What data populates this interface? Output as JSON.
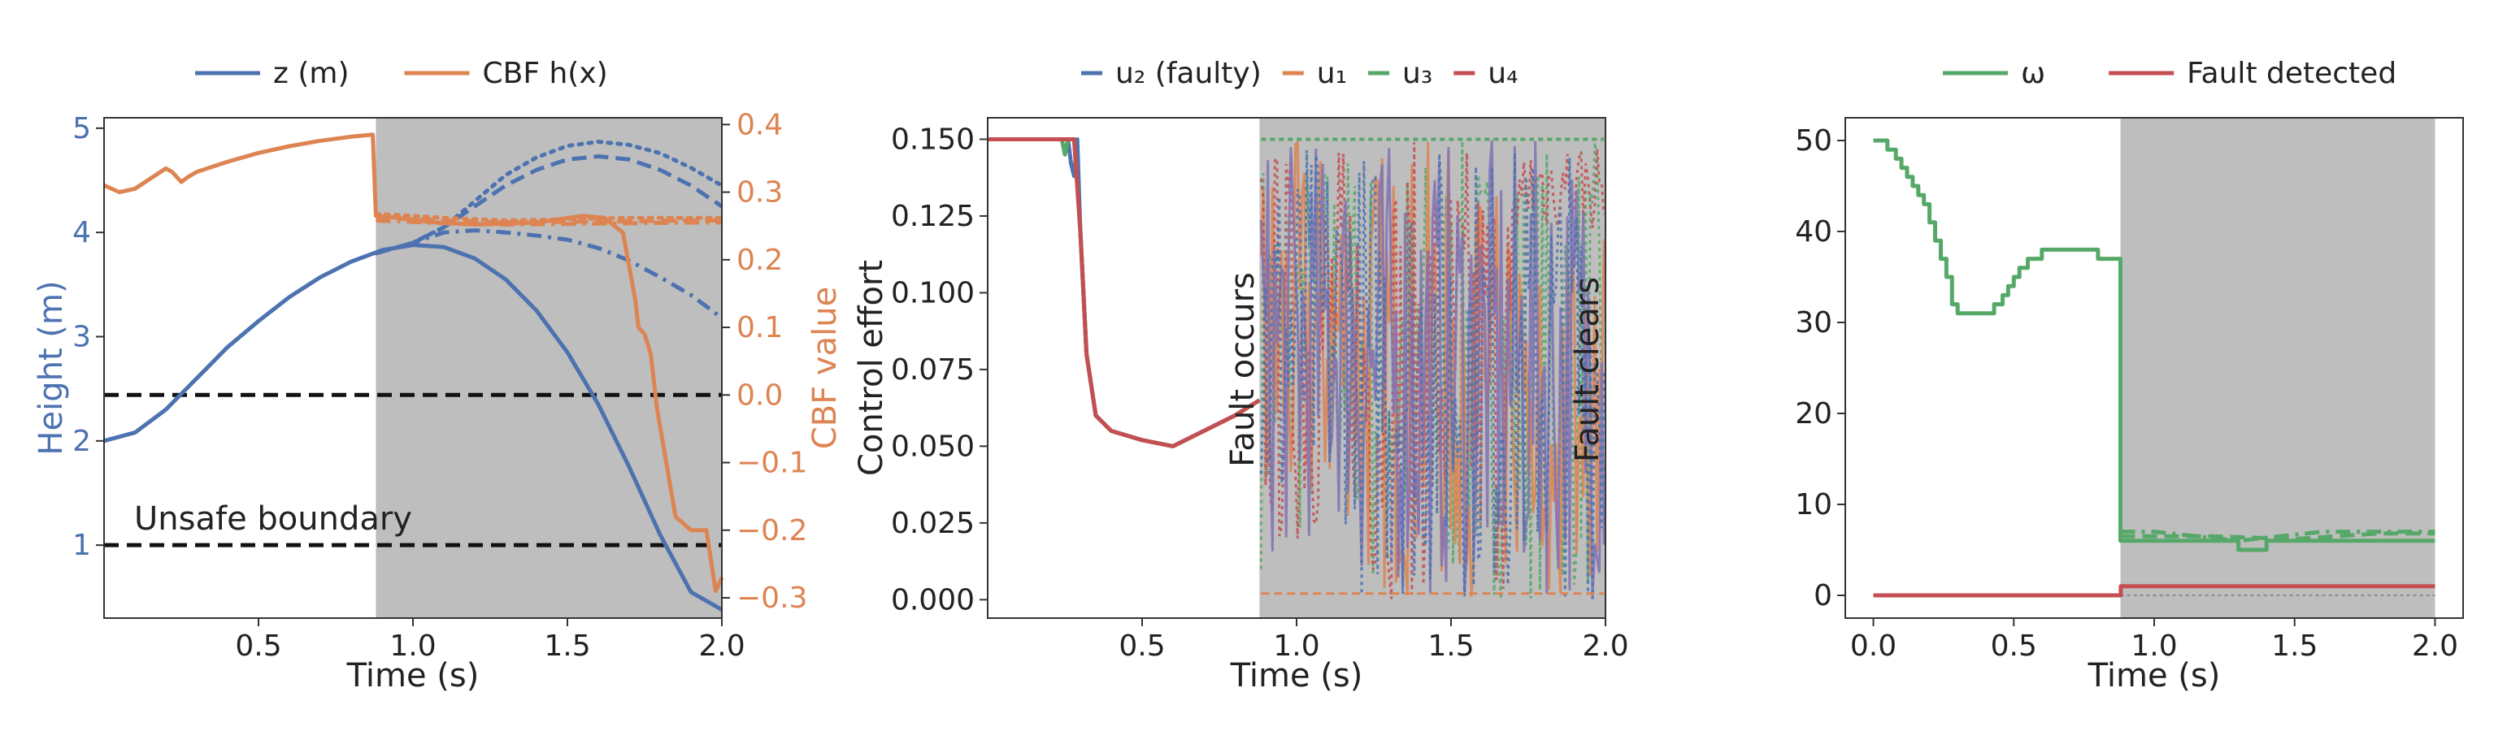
{
  "chart_data": [
    {
      "type": "line",
      "xlabel": "Time (s)",
      "ylabel": "Height (m)",
      "ylabel_right": "CBF value",
      "xlim": [
        0.0,
        2.0
      ],
      "ylim": [
        0.3,
        5.1
      ],
      "ylim_right": [
        -0.33,
        0.41
      ],
      "xticks": [
        "0.5",
        "1.0",
        "1.5",
        "2.0"
      ],
      "yticks": [
        "1",
        "2",
        "3",
        "4",
        "5"
      ],
      "yticks_right": [
        "0.4",
        "0.3",
        "0.2",
        "0.1",
        "0.0",
        "−0.1",
        "−0.2",
        "−0.3"
      ],
      "legend": [
        "z (m)",
        "CBF h(x)"
      ],
      "legend_position": "top",
      "fault_window": [
        0.88,
        2.0
      ],
      "annotations": [
        "Unsafe boundary"
      ],
      "reference_lines": [
        {
          "axis": "left",
          "y": 1.0
        },
        {
          "axis": "right",
          "y": 0.0
        }
      ],
      "series": [
        {
          "name": "z (m)",
          "axis": "left",
          "style": "solid",
          "x": [
            0.0,
            0.1,
            0.2,
            0.3,
            0.4,
            0.5,
            0.6,
            0.7,
            0.8,
            0.9,
            1.0,
            1.1,
            1.2,
            1.3,
            1.4,
            1.5,
            1.6,
            1.7,
            1.8,
            1.9,
            2.0
          ],
          "values": [
            2.0,
            2.08,
            2.3,
            2.6,
            2.9,
            3.15,
            3.38,
            3.57,
            3.72,
            3.83,
            3.88,
            3.86,
            3.75,
            3.55,
            3.25,
            2.85,
            2.35,
            1.75,
            1.1,
            0.55,
            0.38
          ]
        },
        {
          "axis": "left",
          "style": "dashed",
          "x": [
            0.88,
            1.0,
            1.1,
            1.2,
            1.3,
            1.4,
            1.5,
            1.6,
            1.7,
            1.8,
            1.9,
            2.0
          ],
          "values": [
            3.8,
            3.9,
            4.05,
            4.25,
            4.45,
            4.6,
            4.7,
            4.73,
            4.7,
            4.6,
            4.45,
            4.25
          ]
        },
        {
          "axis": "left",
          "style": "dotted",
          "x": [
            0.88,
            1.0,
            1.1,
            1.2,
            1.3,
            1.4,
            1.5,
            1.6,
            1.7,
            1.8,
            1.9,
            2.0
          ],
          "values": [
            3.8,
            3.9,
            4.05,
            4.3,
            4.55,
            4.72,
            4.83,
            4.87,
            4.84,
            4.76,
            4.62,
            4.45
          ]
        },
        {
          "axis": "left",
          "style": "dashdot",
          "x": [
            0.88,
            1.0,
            1.1,
            1.2,
            1.3,
            1.4,
            1.5,
            1.6,
            1.7,
            1.8,
            1.9,
            2.0
          ],
          "values": [
            3.8,
            3.9,
            4.0,
            4.02,
            4.0,
            3.97,
            3.93,
            3.85,
            3.73,
            3.57,
            3.4,
            3.18
          ]
        },
        {
          "name": "CBF h(x)",
          "axis": "right",
          "style": "solid",
          "x": [
            0.0,
            0.05,
            0.1,
            0.15,
            0.2,
            0.22,
            0.25,
            0.27,
            0.3,
            0.4,
            0.5,
            0.6,
            0.7,
            0.8,
            0.87,
            0.88,
            0.95,
            1.05,
            1.2,
            1.4,
            1.55,
            1.62,
            1.68,
            1.72,
            1.73,
            1.75,
            1.77,
            1.79,
            1.82,
            1.85,
            1.9,
            1.95,
            1.98,
            2.0
          ],
          "values": [
            0.31,
            0.3,
            0.305,
            0.32,
            0.335,
            0.33,
            0.315,
            0.322,
            0.33,
            0.345,
            0.358,
            0.368,
            0.376,
            0.382,
            0.385,
            0.265,
            0.262,
            0.256,
            0.252,
            0.255,
            0.265,
            0.262,
            0.24,
            0.14,
            0.1,
            0.09,
            0.06,
            -0.02,
            -0.1,
            -0.18,
            -0.2,
            -0.2,
            -0.29,
            -0.27
          ]
        },
        {
          "axis": "right",
          "style": "dashed",
          "x": [
            0.88,
            1.1,
            1.3,
            1.5,
            1.7,
            1.9,
            2.0
          ],
          "values": [
            0.262,
            0.258,
            0.255,
            0.256,
            0.257,
            0.258,
            0.258
          ]
        },
        {
          "axis": "right",
          "style": "dotted",
          "x": [
            0.88,
            1.1,
            1.3,
            1.5,
            1.7,
            1.9,
            2.0
          ],
          "values": [
            0.268,
            0.262,
            0.258,
            0.26,
            0.262,
            0.262,
            0.262
          ]
        },
        {
          "axis": "right",
          "style": "dashdot",
          "x": [
            0.88,
            1.1,
            1.3,
            1.5,
            1.7,
            1.9,
            2.0
          ],
          "values": [
            0.258,
            0.254,
            0.252,
            0.253,
            0.254,
            0.255,
            0.255
          ]
        }
      ]
    },
    {
      "type": "line",
      "xlabel": "Time (s)",
      "ylabel": "Control effort",
      "xlim": [
        0.0,
        2.0
      ],
      "ylim": [
        -0.006,
        0.157
      ],
      "xticks": [
        "0.5",
        "1.0",
        "1.5",
        "2.0"
      ],
      "yticks": [
        "0.000",
        "0.025",
        "0.050",
        "0.075",
        "0.100",
        "0.125",
        "0.150"
      ],
      "legend": [
        "u₂ (faulty)",
        "u₁",
        "u₃",
        "u₄"
      ],
      "legend_position": "top",
      "fault_window": [
        0.88,
        2.0
      ],
      "annotations": [
        "Fault occurs",
        "Fault clears"
      ],
      "series": [
        {
          "name": "u₂ (faulty)",
          "color": "#4c72b0",
          "x": [
            0.0,
            0.26,
            0.27,
            0.28,
            0.29,
            0.3,
            0.32,
            0.35,
            0.4,
            0.5,
            0.6,
            0.7,
            0.8,
            0.88
          ],
          "values": [
            0.15,
            0.15,
            0.142,
            0.138,
            0.15,
            0.12,
            0.08,
            0.06,
            0.055,
            0.052,
            0.05,
            0.055,
            0.06,
            0.065
          ]
        },
        {
          "name": "u₁",
          "color": "#dd8452",
          "x": [
            0.0,
            0.28,
            0.3,
            0.32,
            0.35,
            0.4,
            0.5,
            0.6,
            0.7,
            0.8,
            0.88
          ],
          "values": [
            0.15,
            0.15,
            0.12,
            0.08,
            0.06,
            0.055,
            0.052,
            0.05,
            0.055,
            0.06,
            0.065
          ]
        },
        {
          "name": "u₃",
          "color": "#55a868",
          "x": [
            0.0,
            0.24,
            0.25,
            0.26,
            0.28,
            0.3,
            0.32,
            0.35,
            0.4,
            0.5,
            0.6,
            0.7,
            0.8,
            0.88
          ],
          "values": [
            0.15,
            0.15,
            0.145,
            0.15,
            0.15,
            0.12,
            0.08,
            0.06,
            0.055,
            0.052,
            0.05,
            0.055,
            0.06,
            0.065
          ]
        },
        {
          "name": "u₄",
          "color": "#c44e52",
          "x": [
            0.0,
            0.28,
            0.3,
            0.32,
            0.35,
            0.4,
            0.5,
            0.6,
            0.7,
            0.8,
            0.88
          ],
          "values": [
            0.15,
            0.15,
            0.12,
            0.08,
            0.06,
            0.055,
            0.052,
            0.05,
            0.055,
            0.06,
            0.065
          ]
        }
      ]
    },
    {
      "type": "line",
      "xlabel": "Time (s)",
      "xlim": [
        -0.1,
        2.1
      ],
      "ylim": [
        -2.5,
        52.5
      ],
      "xticks": [
        "0.0",
        "0.5",
        "1.0",
        "1.5",
        "2.0"
      ],
      "yticks": [
        "0",
        "10",
        "20",
        "30",
        "40",
        "50"
      ],
      "legend": [
        "ω",
        "Fault detected"
      ],
      "legend_position": "top",
      "fault_window": [
        0.88,
        2.0
      ],
      "series": [
        {
          "name": "ω",
          "color": "#55a868",
          "style": "step",
          "x": [
            0.0,
            0.05,
            0.08,
            0.1,
            0.12,
            0.14,
            0.16,
            0.18,
            0.2,
            0.22,
            0.24,
            0.26,
            0.28,
            0.3,
            0.4,
            0.43,
            0.46,
            0.48,
            0.5,
            0.52,
            0.55,
            0.6,
            0.65,
            0.8,
            0.87,
            0.88,
            1.0,
            1.2,
            1.3,
            1.4,
            1.6,
            1.8,
            2.0
          ],
          "values": [
            50,
            49,
            48,
            47,
            46,
            45,
            44,
            43,
            41,
            39,
            37,
            35,
            32,
            31,
            31,
            32,
            33,
            34,
            35,
            36,
            37,
            38,
            38,
            37,
            37,
            6,
            6,
            6,
            5,
            6,
            6,
            6,
            6
          ]
        },
        {
          "color": "#55a868",
          "style": "dashdot",
          "x": [
            0.88,
            1.0,
            1.3,
            1.6,
            2.0
          ],
          "values": [
            7,
            7,
            6,
            7,
            7
          ]
        },
        {
          "color": "#55a868",
          "style": "dashed",
          "x": [
            0.88,
            1.2,
            1.5,
            1.8,
            2.0
          ],
          "values": [
            6.5,
            6.5,
            6.2,
            6.8,
            6.8
          ]
        },
        {
          "name": "Fault detected",
          "color": "#c44e52",
          "style": "step",
          "x": [
            0.0,
            0.88,
            0.881,
            2.0
          ],
          "values": [
            0,
            0,
            1,
            1
          ]
        }
      ]
    }
  ]
}
